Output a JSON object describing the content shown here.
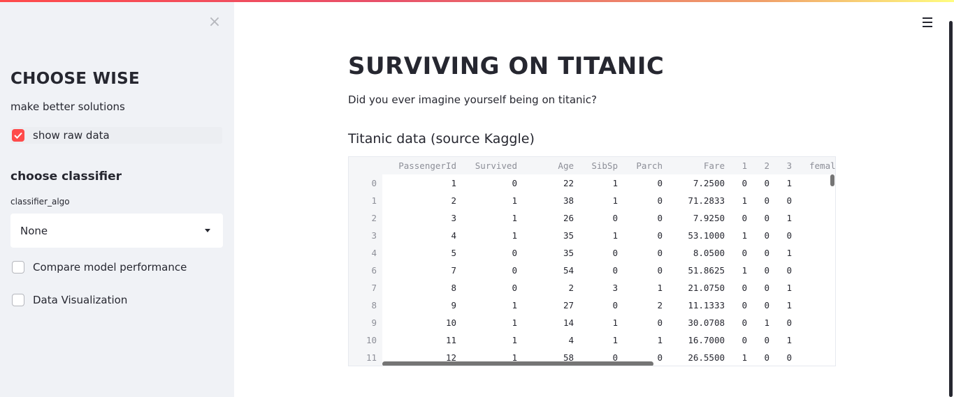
{
  "sidebar": {
    "close_label": "×",
    "title": "CHOOSE WISE",
    "subtitle": "make better solutions",
    "show_raw_data": {
      "label": "show raw data",
      "checked": true
    },
    "classifier_header": "choose classifier",
    "classifier_select": {
      "label": "classifier_algo",
      "value": "None"
    },
    "compare_checkbox": {
      "label": "Compare model performance",
      "checked": false
    },
    "viz_checkbox": {
      "label": "Data Visualization",
      "checked": false
    }
  },
  "main": {
    "title": "SURVIVING ON TITANIC",
    "description": "Did you ever imagine yourself being on titanic?",
    "table_title": "Titanic data (source Kaggle)"
  },
  "table": {
    "columns": [
      "PassengerId",
      "Survived",
      "Age",
      "SibSp",
      "Parch",
      "Fare",
      "1",
      "2",
      "3",
      "femal"
    ],
    "rows": [
      [
        "0",
        "1",
        "0",
        "22",
        "1",
        "0",
        "7.2500",
        "0",
        "0",
        "1"
      ],
      [
        "1",
        "2",
        "1",
        "38",
        "1",
        "0",
        "71.2833",
        "1",
        "0",
        "0"
      ],
      [
        "2",
        "3",
        "1",
        "26",
        "0",
        "0",
        "7.9250",
        "0",
        "0",
        "1"
      ],
      [
        "3",
        "4",
        "1",
        "35",
        "1",
        "0",
        "53.1000",
        "1",
        "0",
        "0"
      ],
      [
        "4",
        "5",
        "0",
        "35",
        "0",
        "0",
        "8.0500",
        "0",
        "0",
        "1"
      ],
      [
        "6",
        "7",
        "0",
        "54",
        "0",
        "0",
        "51.8625",
        "1",
        "0",
        "0"
      ],
      [
        "7",
        "8",
        "0",
        "2",
        "3",
        "1",
        "21.0750",
        "0",
        "0",
        "1"
      ],
      [
        "8",
        "9",
        "1",
        "27",
        "0",
        "2",
        "11.1333",
        "0",
        "0",
        "1"
      ],
      [
        "9",
        "10",
        "1",
        "14",
        "1",
        "0",
        "30.0708",
        "0",
        "1",
        "0"
      ],
      [
        "10",
        "11",
        "1",
        "4",
        "1",
        "1",
        "16.7000",
        "0",
        "0",
        "1"
      ],
      [
        "11",
        "12",
        "1",
        "58",
        "0",
        "0",
        "26.5500",
        "1",
        "0",
        "0"
      ]
    ]
  },
  "colors": {
    "accent": "#ff4b4b",
    "sidebar_bg": "#f0f2f6",
    "text": "#262730"
  },
  "icons": {
    "close": "close-icon",
    "menu": "hamburger-menu-icon",
    "select": "chevron-down-icon",
    "check": "check-icon"
  }
}
